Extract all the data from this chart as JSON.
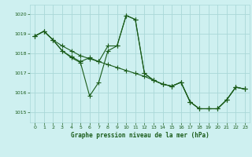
{
  "title": "Graphe pression niveau de la mer (hPa)",
  "bg_color": "#cef0f0",
  "grid_color": "#aad8d8",
  "line_color": "#1a5c1a",
  "xlim": [
    -0.5,
    23.5
  ],
  "ylim": [
    1014.5,
    1020.5
  ],
  "xticks": [
    0,
    1,
    2,
    3,
    4,
    5,
    6,
    7,
    8,
    9,
    10,
    11,
    12,
    13,
    14,
    15,
    16,
    17,
    18,
    19,
    20,
    21,
    22,
    23
  ],
  "yticks": [
    1015,
    1016,
    1017,
    1018,
    1019,
    1020
  ],
  "series1": [
    [
      0,
      1018.9
    ],
    [
      1,
      1019.15
    ],
    [
      2,
      1018.7
    ],
    [
      3,
      1018.15
    ],
    [
      4,
      1017.8
    ],
    [
      5,
      1017.55
    ],
    [
      6,
      1015.85
    ],
    [
      7,
      1016.55
    ],
    [
      8,
      1018.15
    ],
    [
      9,
      1018.4
    ],
    [
      10,
      1019.95
    ],
    [
      11,
      1019.75
    ],
    [
      12,
      1017.0
    ],
    [
      13,
      1016.65
    ],
    [
      14,
      1016.45
    ],
    [
      15,
      1016.35
    ],
    [
      16,
      1016.55
    ],
    [
      17,
      1015.55
    ],
    [
      18,
      1015.2
    ],
    [
      19,
      1015.2
    ],
    [
      20,
      1015.2
    ],
    [
      21,
      1015.65
    ],
    [
      22,
      1016.3
    ],
    [
      23,
      1016.2
    ]
  ],
  "series2": [
    [
      0,
      1018.9
    ],
    [
      1,
      1019.15
    ],
    [
      2,
      1018.7
    ],
    [
      3,
      1018.4
    ],
    [
      4,
      1018.15
    ],
    [
      5,
      1017.9
    ],
    [
      6,
      1017.75
    ],
    [
      7,
      1017.6
    ],
    [
      8,
      1017.45
    ],
    [
      9,
      1017.3
    ],
    [
      10,
      1017.15
    ],
    [
      11,
      1017.0
    ],
    [
      12,
      1016.85
    ],
    [
      13,
      1016.65
    ],
    [
      14,
      1016.45
    ],
    [
      15,
      1016.35
    ],
    [
      16,
      1016.55
    ],
    [
      17,
      1015.55
    ],
    [
      18,
      1015.2
    ],
    [
      19,
      1015.2
    ],
    [
      20,
      1015.2
    ],
    [
      21,
      1015.65
    ],
    [
      22,
      1016.3
    ],
    [
      23,
      1016.2
    ]
  ],
  "series3": [
    [
      0,
      1018.9
    ],
    [
      1,
      1019.15
    ],
    [
      2,
      1018.7
    ],
    [
      3,
      1018.15
    ],
    [
      4,
      1017.85
    ],
    [
      5,
      1017.6
    ],
    [
      6,
      1017.8
    ],
    [
      7,
      1017.6
    ],
    [
      8,
      1018.4
    ],
    [
      9,
      1018.4
    ],
    [
      10,
      1019.95
    ],
    [
      11,
      1019.75
    ],
    [
      12,
      1017.0
    ],
    [
      13,
      1016.65
    ],
    [
      14,
      1016.45
    ],
    [
      15,
      1016.35
    ],
    [
      16,
      1016.55
    ],
    [
      17,
      1015.55
    ],
    [
      18,
      1015.2
    ],
    [
      19,
      1015.2
    ],
    [
      20,
      1015.2
    ],
    [
      21,
      1015.65
    ],
    [
      22,
      1016.3
    ],
    [
      23,
      1016.2
    ]
  ]
}
